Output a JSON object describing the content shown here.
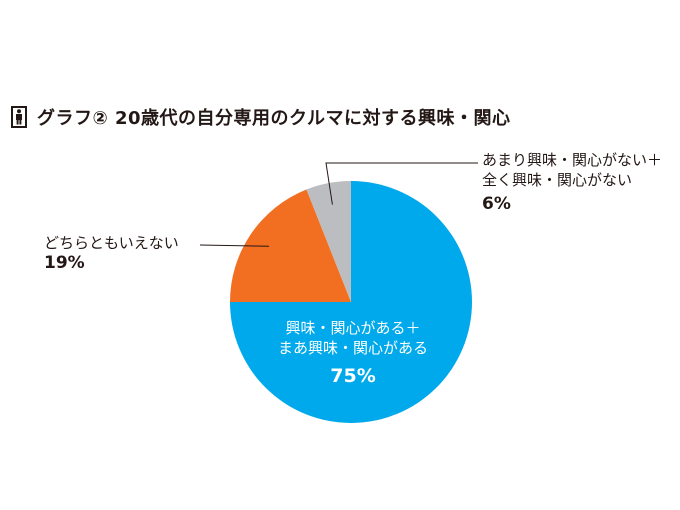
{
  "title": "グラフ② 20歳代の自分専用のクルマに対する興味・関心",
  "icons": {
    "title_icon": "person-icon"
  },
  "chart_data": {
    "type": "pie",
    "title": "グラフ② 20歳代の自分専用のクルマに対する興味・関心",
    "slices": [
      {
        "label_lines": [
          "興味・関心がある＋",
          "まあ興味・関心がある"
        ],
        "value": 75,
        "display": "75%",
        "color": "#00a9eb"
      },
      {
        "label_lines": [
          "どちらともいえない"
        ],
        "value": 19,
        "display": "19%",
        "color": "#f26e21"
      },
      {
        "label_lines": [
          "あまり興味・関心がない＋",
          "全く興味・関心がない"
        ],
        "value": 6,
        "display": "6%",
        "color": "#bcbdc0"
      }
    ],
    "start": "12 o'clock",
    "direction": "clockwise",
    "legend": "none"
  }
}
